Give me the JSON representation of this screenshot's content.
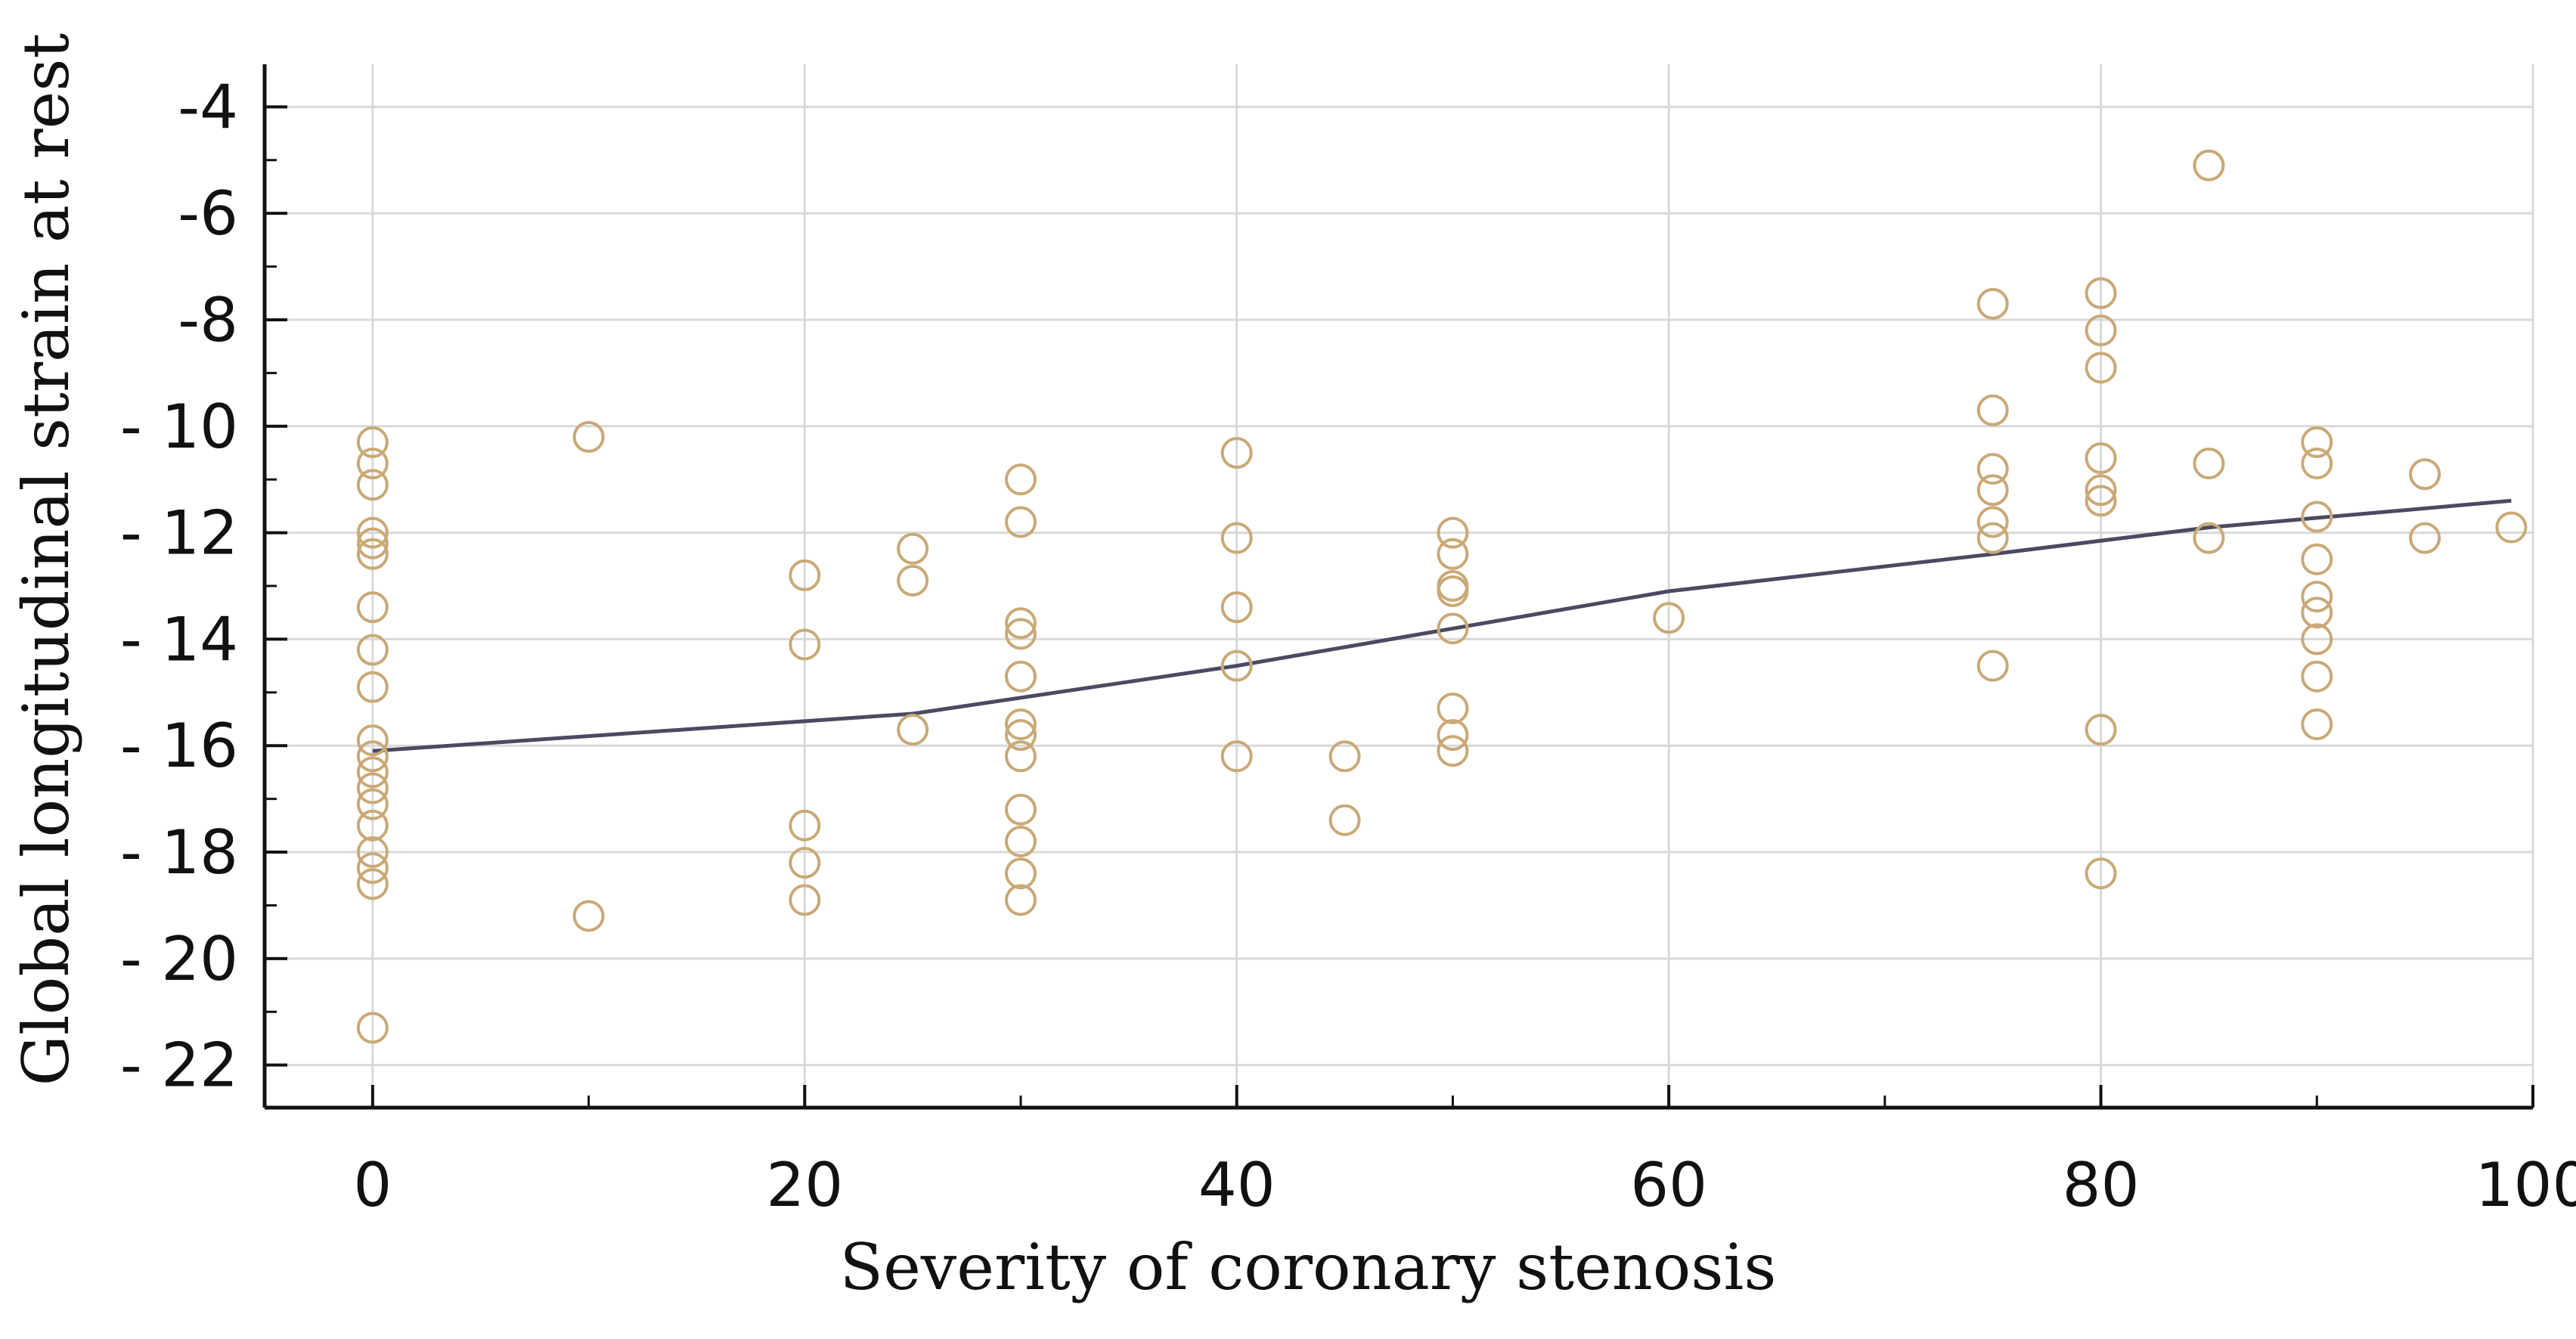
{
  "chart_data": {
    "type": "scatter",
    "title": "",
    "xlabel": "Severity of coronary stenosis",
    "ylabel": "Global longitudinal strain at rest",
    "xlim": [
      -5,
      100
    ],
    "ylim": [
      -22.8,
      -3.2
    ],
    "grid": true,
    "x_ticks": [
      0,
      20,
      40,
      60,
      80,
      100
    ],
    "x_tick_labels": [
      "0",
      "20",
      "40",
      "60",
      "80",
      "100"
    ],
    "x_minor_ticks": [
      10,
      30,
      50,
      70,
      90
    ],
    "y_ticks": [
      -4,
      -6,
      -8,
      -10,
      -12,
      -14,
      -16,
      -18,
      -20,
      -22
    ],
    "y_tick_labels": [
      "-4",
      "-6",
      "-8",
      "- 10",
      "- 12",
      "- 14",
      "- 16",
      "- 18",
      "- 20",
      "- 22"
    ],
    "y_minor_ticks": [
      -5,
      -7,
      -9,
      -11,
      -13,
      -15,
      -17,
      -19,
      -21
    ],
    "colors": {
      "points": "#c9a977",
      "line": "#4a4a62",
      "grid": "#d9d9d9",
      "axis": "#111111"
    },
    "series": [
      {
        "name": "observations",
        "kind": "scatter",
        "points": [
          [
            0,
            -10.3
          ],
          [
            0,
            -10.7
          ],
          [
            0,
            -11.1
          ],
          [
            0,
            -12.0
          ],
          [
            0,
            -12.2
          ],
          [
            0,
            -12.4
          ],
          [
            0,
            -13.4
          ],
          [
            0,
            -14.2
          ],
          [
            0,
            -14.9
          ],
          [
            0,
            -15.9
          ],
          [
            0,
            -16.2
          ],
          [
            0,
            -16.5
          ],
          [
            0,
            -16.8
          ],
          [
            0,
            -17.1
          ],
          [
            0,
            -17.5
          ],
          [
            0,
            -18.0
          ],
          [
            0,
            -18.3
          ],
          [
            0,
            -18.6
          ],
          [
            0,
            -21.3
          ],
          [
            10,
            -10.2
          ],
          [
            10,
            -19.2
          ],
          [
            20,
            -12.8
          ],
          [
            20,
            -14.1
          ],
          [
            20,
            -17.5
          ],
          [
            20,
            -18.2
          ],
          [
            20,
            -18.9
          ],
          [
            25,
            -12.3
          ],
          [
            25,
            -12.9
          ],
          [
            25,
            -15.7
          ],
          [
            30,
            -11.0
          ],
          [
            30,
            -11.8
          ],
          [
            30,
            -13.7
          ],
          [
            30,
            -13.9
          ],
          [
            30,
            -14.7
          ],
          [
            30,
            -15.6
          ],
          [
            30,
            -15.8
          ],
          [
            30,
            -16.2
          ],
          [
            30,
            -17.2
          ],
          [
            30,
            -17.8
          ],
          [
            30,
            -18.4
          ],
          [
            30,
            -18.9
          ],
          [
            40,
            -10.5
          ],
          [
            40,
            -12.1
          ],
          [
            40,
            -13.4
          ],
          [
            40,
            -14.5
          ],
          [
            40,
            -16.2
          ],
          [
            45,
            -16.2
          ],
          [
            45,
            -17.4
          ],
          [
            50,
            -12.0
          ],
          [
            50,
            -12.4
          ],
          [
            50,
            -13.0
          ],
          [
            50,
            -13.1
          ],
          [
            50,
            -13.8
          ],
          [
            50,
            -15.3
          ],
          [
            50,
            -15.8
          ],
          [
            50,
            -16.1
          ],
          [
            60,
            -13.6
          ],
          [
            75,
            -7.7
          ],
          [
            75,
            -9.7
          ],
          [
            75,
            -10.8
          ],
          [
            75,
            -11.2
          ],
          [
            75,
            -11.8
          ],
          [
            75,
            -12.1
          ],
          [
            75,
            -14.5
          ],
          [
            80,
            -7.5
          ],
          [
            80,
            -8.2
          ],
          [
            80,
            -8.9
          ],
          [
            80,
            -10.6
          ],
          [
            80,
            -11.2
          ],
          [
            80,
            -11.4
          ],
          [
            80,
            -15.7
          ],
          [
            80,
            -18.4
          ],
          [
            85,
            -5.1
          ],
          [
            85,
            -10.7
          ],
          [
            85,
            -12.1
          ],
          [
            90,
            -10.3
          ],
          [
            90,
            -10.7
          ],
          [
            90,
            -11.7
          ],
          [
            90,
            -12.5
          ],
          [
            90,
            -13.2
          ],
          [
            90,
            -13.5
          ],
          [
            90,
            -14.0
          ],
          [
            90,
            -14.7
          ],
          [
            90,
            -15.6
          ],
          [
            95,
            -10.9
          ],
          [
            95,
            -12.1
          ],
          [
            99,
            -11.9
          ]
        ]
      },
      {
        "name": "trend",
        "kind": "line",
        "points": [
          [
            0,
            -16.1
          ],
          [
            25,
            -15.4
          ],
          [
            40,
            -14.5
          ],
          [
            50,
            -13.8
          ],
          [
            60,
            -13.1
          ],
          [
            75,
            -12.4
          ],
          [
            85,
            -11.9
          ],
          [
            99,
            -11.4
          ]
        ]
      }
    ]
  }
}
